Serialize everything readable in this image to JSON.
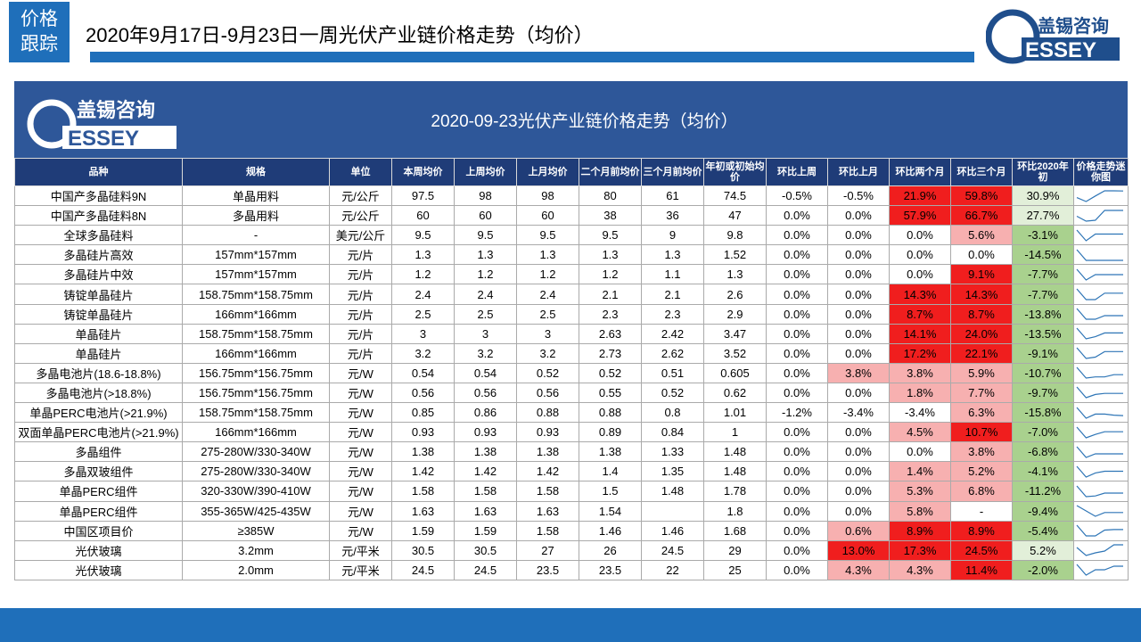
{
  "header": {
    "tag_line1": "价格",
    "tag_line2": "跟踪",
    "title": "2020年9月17日-9月23日一周光伏产业链价格走势（均价）",
    "logo_text_cn": "盖锡咨询",
    "logo_text_en": "ESSEY",
    "logo_letter": "G"
  },
  "colors": {
    "brand_blue": "#1f6fba",
    "banner_blue": "#2e5799",
    "header_navy": "#1f3c78",
    "red_strong": "#f01e1e",
    "red_light": "#f7b0b0",
    "green": "#a9d18e",
    "green_light": "#e2efd9"
  },
  "chart_data": {
    "type": "table",
    "title": "2020-09-23光伏产业链价格走势（均价）",
    "columns": [
      "品种",
      "规格",
      "单位",
      "本周均价",
      "上周均价",
      "上月均价",
      "二个月前均价",
      "三个月前均价",
      "年初或初始均价",
      "环比上周",
      "环比上月",
      "环比两个月",
      "环比三个月",
      "环比2020年初",
      "价格走势迷你图"
    ],
    "rows": [
      {
        "name": "中国产多晶硅料9N",
        "spec": "单晶用料",
        "unit": "元/公斤",
        "wk": "97.5",
        "lwk": "98",
        "lm": "98",
        "m2": "80",
        "m3": "61",
        "ini": "74.5",
        "cw": "-0.5%",
        "cm": "-0.5%",
        "c2": "21.9%",
        "c3": "59.8%",
        "cy": "30.9%"
      },
      {
        "name": "中国产多晶硅料8N",
        "spec": "多晶用料",
        "unit": "元/公斤",
        "wk": "60",
        "lwk": "60",
        "lm": "60",
        "m2": "38",
        "m3": "36",
        "ini": "47",
        "cw": "0.0%",
        "cm": "0.0%",
        "c2": "57.9%",
        "c3": "66.7%",
        "cy": "27.7%"
      },
      {
        "name": "全球多晶硅料",
        "spec": "-",
        "unit": "美元/公斤",
        "wk": "9.5",
        "lwk": "9.5",
        "lm": "9.5",
        "m2": "9.5",
        "m3": "9",
        "ini": "9.8",
        "cw": "0.0%",
        "cm": "0.0%",
        "c2": "0.0%",
        "c3": "5.6%",
        "cy": "-3.1%"
      },
      {
        "name": "多晶硅片高效",
        "spec": "157mm*157mm",
        "unit": "元/片",
        "wk": "1.3",
        "lwk": "1.3",
        "lm": "1.3",
        "m2": "1.3",
        "m3": "1.3",
        "ini": "1.52",
        "cw": "0.0%",
        "cm": "0.0%",
        "c2": "0.0%",
        "c3": "0.0%",
        "cy": "-14.5%"
      },
      {
        "name": "多晶硅片中效",
        "spec": "157mm*157mm",
        "unit": "元/片",
        "wk": "1.2",
        "lwk": "1.2",
        "lm": "1.2",
        "m2": "1.2",
        "m3": "1.1",
        "ini": "1.3",
        "cw": "0.0%",
        "cm": "0.0%",
        "c2": "0.0%",
        "c3": "9.1%",
        "cy": "-7.7%"
      },
      {
        "name": "铸锭单晶硅片",
        "spec": "158.75mm*158.75mm",
        "unit": "元/片",
        "wk": "2.4",
        "lwk": "2.4",
        "lm": "2.4",
        "m2": "2.1",
        "m3": "2.1",
        "ini": "2.6",
        "cw": "0.0%",
        "cm": "0.0%",
        "c2": "14.3%",
        "c3": "14.3%",
        "cy": "-7.7%"
      },
      {
        "name": "铸锭单晶硅片",
        "spec": "166mm*166mm",
        "unit": "元/片",
        "wk": "2.5",
        "lwk": "2.5",
        "lm": "2.5",
        "m2": "2.3",
        "m3": "2.3",
        "ini": "2.9",
        "cw": "0.0%",
        "cm": "0.0%",
        "c2": "8.7%",
        "c3": "8.7%",
        "cy": "-13.8%"
      },
      {
        "name": "单晶硅片",
        "spec": "158.75mm*158.75mm",
        "unit": "元/片",
        "wk": "3",
        "lwk": "3",
        "lm": "3",
        "m2": "2.63",
        "m3": "2.42",
        "ini": "3.47",
        "cw": "0.0%",
        "cm": "0.0%",
        "c2": "14.1%",
        "c3": "24.0%",
        "cy": "-13.5%"
      },
      {
        "name": "单晶硅片",
        "spec": "166mm*166mm",
        "unit": "元/片",
        "wk": "3.2",
        "lwk": "3.2",
        "lm": "3.2",
        "m2": "2.73",
        "m3": "2.62",
        "ini": "3.52",
        "cw": "0.0%",
        "cm": "0.0%",
        "c2": "17.2%",
        "c3": "22.1%",
        "cy": "-9.1%"
      },
      {
        "name": "多晶电池片(18.6-18.8%)",
        "spec": "156.75mm*156.75mm",
        "unit": "元/W",
        "wk": "0.54",
        "lwk": "0.54",
        "lm": "0.52",
        "m2": "0.52",
        "m3": "0.51",
        "ini": "0.605",
        "cw": "0.0%",
        "cm": "3.8%",
        "c2": "3.8%",
        "c3": "5.9%",
        "cy": "-10.7%"
      },
      {
        "name": "多晶电池片(>18.8%)",
        "spec": "156.75mm*156.75mm",
        "unit": "元/W",
        "wk": "0.56",
        "lwk": "0.56",
        "lm": "0.56",
        "m2": "0.55",
        "m3": "0.52",
        "ini": "0.62",
        "cw": "0.0%",
        "cm": "0.0%",
        "c2": "1.8%",
        "c3": "7.7%",
        "cy": "-9.7%"
      },
      {
        "name": "单晶PERC电池片(>21.9%)",
        "spec": "158.75mm*158.75mm",
        "unit": "元/W",
        "wk": "0.85",
        "lwk": "0.86",
        "lm": "0.88",
        "m2": "0.88",
        "m3": "0.8",
        "ini": "1.01",
        "cw": "-1.2%",
        "cm": "-3.4%",
        "c2": "-3.4%",
        "c3": "6.3%",
        "cy": "-15.8%"
      },
      {
        "name": "双面单晶PERC电池片(>21.9%)",
        "spec": "166mm*166mm",
        "unit": "元/W",
        "wk": "0.93",
        "lwk": "0.93",
        "lm": "0.93",
        "m2": "0.89",
        "m3": "0.84",
        "ini": "1",
        "cw": "0.0%",
        "cm": "0.0%",
        "c2": "4.5%",
        "c3": "10.7%",
        "cy": "-7.0%"
      },
      {
        "name": "多晶组件",
        "spec": "275-280W/330-340W",
        "unit": "元/W",
        "wk": "1.38",
        "lwk": "1.38",
        "lm": "1.38",
        "m2": "1.38",
        "m3": "1.33",
        "ini": "1.48",
        "cw": "0.0%",
        "cm": "0.0%",
        "c2": "0.0%",
        "c3": "3.8%",
        "cy": "-6.8%"
      },
      {
        "name": "多晶双玻组件",
        "spec": "275-280W/330-340W",
        "unit": "元/W",
        "wk": "1.42",
        "lwk": "1.42",
        "lm": "1.42",
        "m2": "1.4",
        "m3": "1.35",
        "ini": "1.48",
        "cw": "0.0%",
        "cm": "0.0%",
        "c2": "1.4%",
        "c3": "5.2%",
        "cy": "-4.1%"
      },
      {
        "name": "单晶PERC组件",
        "spec": "320-330W/390-410W",
        "unit": "元/W",
        "wk": "1.58",
        "lwk": "1.58",
        "lm": "1.58",
        "m2": "1.5",
        "m3": "1.48",
        "ini": "1.78",
        "cw": "0.0%",
        "cm": "0.0%",
        "c2": "5.3%",
        "c3": "6.8%",
        "cy": "-11.2%"
      },
      {
        "name": "单晶PERC组件",
        "spec": "355-365W/425-435W",
        "unit": "元/W",
        "wk": "1.63",
        "lwk": "1.63",
        "lm": "1.63",
        "m2": "1.54",
        "m3": "",
        "ini": "1.8",
        "cw": "0.0%",
        "cm": "0.0%",
        "c2": "5.8%",
        "c3": "-",
        "cy": "-9.4%"
      },
      {
        "name": "中国区项目价",
        "spec": "≥385W",
        "unit": "元/W",
        "wk": "1.59",
        "lwk": "1.59",
        "lm": "1.58",
        "m2": "1.46",
        "m3": "1.46",
        "ini": "1.68",
        "cw": "0.0%",
        "cm": "0.6%",
        "c2": "8.9%",
        "c3": "8.9%",
        "cy": "-5.4%"
      },
      {
        "name": "光伏玻璃",
        "spec": "3.2mm",
        "unit": "元/平米",
        "wk": "30.5",
        "lwk": "30.5",
        "lm": "27",
        "m2": "26",
        "m3": "24.5",
        "ini": "29",
        "cw": "0.0%",
        "cm": "13.0%",
        "c2": "17.3%",
        "c3": "24.5%",
        "cy": "5.2%"
      },
      {
        "name": "光伏玻璃",
        "spec": "2.0mm",
        "unit": "元/平米",
        "wk": "24.5",
        "lwk": "24.5",
        "lm": "23.5",
        "m2": "23.5",
        "m3": "22",
        "ini": "25",
        "cw": "0.0%",
        "cm": "4.3%",
        "c2": "4.3%",
        "c3": "11.4%",
        "cy": "-2.0%"
      }
    ]
  }
}
